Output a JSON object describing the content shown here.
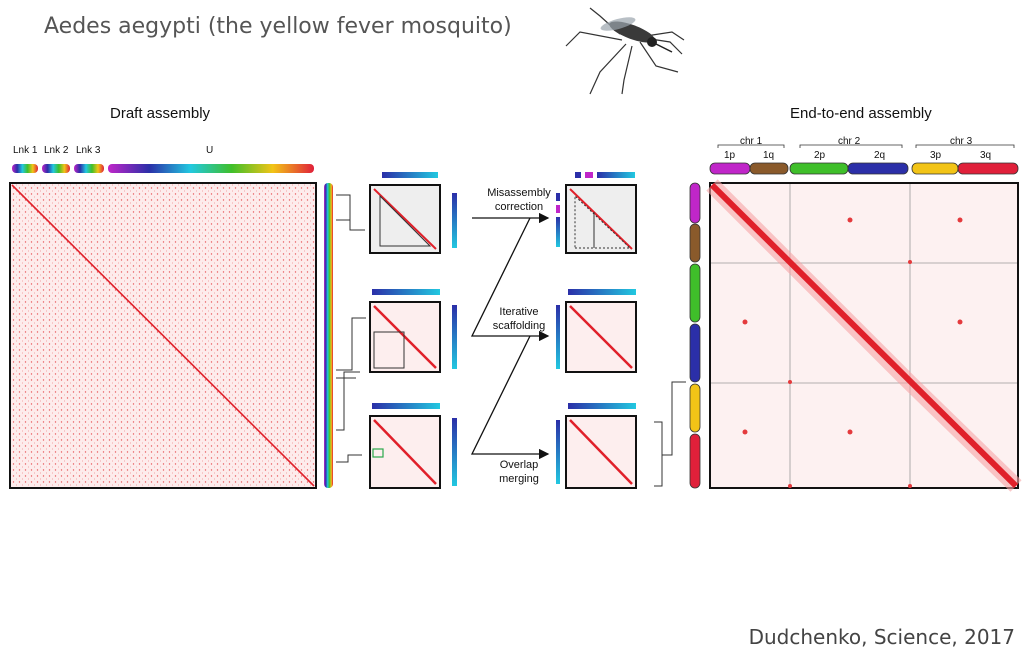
{
  "title": "Aedes aegypti (the yellow fever mosquito)",
  "credit": "Dudchenko, Science, 2017",
  "draft": {
    "heading": "Draft assembly",
    "groups": [
      "Lnk 1",
      "Lnk 2",
      "Lnk 3",
      "U"
    ]
  },
  "steps": [
    {
      "label": "Misassembly\ncorrection"
    },
    {
      "label": "Iterative\nscaffolding"
    },
    {
      "label": "Overlap\nmerging"
    }
  ],
  "final": {
    "heading": "End-to-end assembly",
    "chromosomes": [
      "chr 1",
      "chr 2",
      "chr 3"
    ],
    "arms": [
      "1p",
      "1q",
      "2p",
      "2q",
      "3p",
      "3q"
    ]
  },
  "colors": {
    "heatmap": "#e8262a",
    "heatmap_bg": "#fde7e7",
    "chr1p": "#c026c9",
    "chr1q": "#8a5a2b",
    "chr2p": "#3fbf2a",
    "chr2q": "#2b2fa8",
    "chr3p": "#f2c417",
    "chr3q": "#e0203a",
    "cyan": "#22c8e0"
  }
}
